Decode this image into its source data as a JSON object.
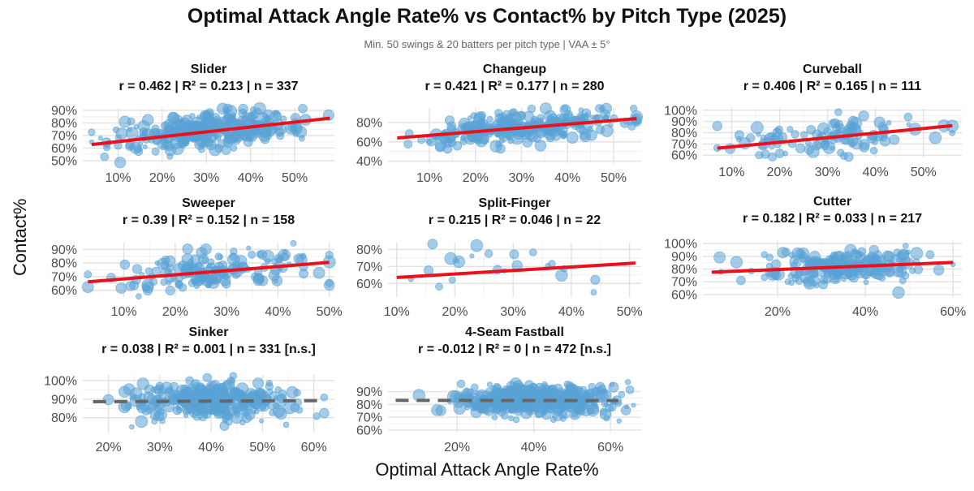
{
  "title": "Optimal Attack Angle Rate% vs Contact% by Pitch Type (2025)",
  "subtitle": "Min. 50 swings & 20 batters per pitch type | VAA ± 5°",
  "xlabel": "Optimal Attack Angle Rate%",
  "ylabel": "Contact%",
  "colors": {
    "points": "#5aa3d6",
    "fit_significant": "#e8111c",
    "fit_ns": "#666666",
    "grid": "#e2e2e2"
  },
  "chart_data": [
    {
      "type": "scatter",
      "panel": "Slider",
      "stats": "r = 0.462 | R² = 0.213 | n = 337",
      "xlim": [
        0.02,
        0.59
      ],
      "ylim": [
        0.48,
        0.92
      ],
      "xticks": [
        0.1,
        0.2,
        0.3,
        0.4,
        0.5
      ],
      "xtick_labels": [
        "10%",
        "20%",
        "30%",
        "40%",
        "50%"
      ],
      "yticks": [
        0.5,
        0.6,
        0.7,
        0.8,
        0.9
      ],
      "ytick_labels": [
        "50%",
        "60%",
        "70%",
        "80%",
        "90%"
      ],
      "n": 337,
      "xrange": [
        0.04,
        0.58
      ],
      "xcenter": 0.3,
      "xspread": 0.1,
      "yspread": 0.07,
      "fit": {
        "x": [
          0.04,
          0.58
        ],
        "y": [
          0.628,
          0.838
        ],
        "significant": true
      }
    },
    {
      "type": "scatter",
      "panel": "Changeup",
      "stats": "r = 0.421 | R² = 0.177 | n = 280",
      "xlim": [
        0.01,
        0.56
      ],
      "ylim": [
        0.38,
        0.95
      ],
      "xticks": [
        0.1,
        0.2,
        0.3,
        0.4,
        0.5
      ],
      "xtick_labels": [
        "10%",
        "20%",
        "30%",
        "40%",
        "50%"
      ],
      "yticks": [
        0.4,
        0.6,
        0.8
      ],
      "ytick_labels": [
        "40%",
        "60%",
        "80%"
      ],
      "n": 280,
      "xrange": [
        0.03,
        0.55
      ],
      "xcenter": 0.3,
      "xspread": 0.11,
      "yspread": 0.08,
      "fit": {
        "x": [
          0.03,
          0.55
        ],
        "y": [
          0.64,
          0.84
        ],
        "significant": true
      }
    },
    {
      "type": "scatter",
      "panel": "Curveball",
      "stats": "r = 0.406 | R² = 0.165 | n = 111",
      "xlim": [
        0.04,
        0.58
      ],
      "ylim": [
        0.58,
        1.02
      ],
      "xticks": [
        0.1,
        0.2,
        0.3,
        0.4,
        0.5
      ],
      "xtick_labels": [
        "10%",
        "20%",
        "30%",
        "40%",
        "50%"
      ],
      "yticks": [
        0.6,
        0.7,
        0.8,
        0.9,
        1.0
      ],
      "ytick_labels": [
        "60%",
        "70%",
        "80%",
        "90%",
        "100%"
      ],
      "n": 111,
      "xrange": [
        0.07,
        0.56
      ],
      "xcenter": 0.3,
      "xspread": 0.1,
      "yspread": 0.08,
      "fit": {
        "x": [
          0.07,
          0.56
        ],
        "y": [
          0.662,
          0.862
        ],
        "significant": true
      }
    },
    {
      "type": "scatter",
      "panel": "Sweeper",
      "stats": "r = 0.39 | R² = 0.152 | n = 158",
      "xlim": [
        0.02,
        0.51
      ],
      "ylim": [
        0.55,
        0.95
      ],
      "xticks": [
        0.1,
        0.2,
        0.3,
        0.4,
        0.5
      ],
      "xtick_labels": [
        "10%",
        "20%",
        "30%",
        "40%",
        "50%"
      ],
      "yticks": [
        0.6,
        0.7,
        0.8,
        0.9
      ],
      "ytick_labels": [
        "60%",
        "70%",
        "80%",
        "90%"
      ],
      "n": 158,
      "xrange": [
        0.03,
        0.5
      ],
      "xcenter": 0.28,
      "xspread": 0.1,
      "yspread": 0.07,
      "fit": {
        "x": [
          0.03,
          0.5
        ],
        "y": [
          0.662,
          0.805
        ],
        "significant": true
      }
    },
    {
      "type": "scatter",
      "panel": "Split-Finger",
      "stats": "r = 0.215 | R² = 0.046 | n = 22",
      "xlim": [
        0.085,
        0.52
      ],
      "ylim": [
        0.52,
        0.84
      ],
      "xticks": [
        0.1,
        0.2,
        0.3,
        0.4,
        0.5
      ],
      "xtick_labels": [
        "10%",
        "20%",
        "30%",
        "40%",
        "50%"
      ],
      "yticks": [
        0.6,
        0.7,
        0.8
      ],
      "ytick_labels": [
        "60%",
        "70%",
        "80%"
      ],
      "n": 22,
      "xrange": [
        0.1,
        0.51
      ],
      "xcenter": 0.3,
      "xspread": 0.1,
      "yspread": 0.08,
      "fit": {
        "x": [
          0.1,
          0.51
        ],
        "y": [
          0.635,
          0.72
        ],
        "significant": true
      }
    },
    {
      "type": "scatter",
      "panel": "Cutter",
      "stats": "r = 0.182 | R² = 0.033 | n = 217",
      "xlim": [
        0.03,
        0.62
      ],
      "ylim": [
        0.58,
        1.02
      ],
      "xticks": [
        0.2,
        0.4,
        0.6
      ],
      "xtick_labels": [
        "20%",
        "40%",
        "60%"
      ],
      "yticks": [
        0.6,
        0.7,
        0.8,
        0.9,
        1.0
      ],
      "ytick_labels": [
        "60%",
        "70%",
        "80%",
        "90%",
        "100%"
      ],
      "n": 217,
      "xrange": [
        0.05,
        0.6
      ],
      "xcenter": 0.35,
      "xspread": 0.1,
      "yspread": 0.06,
      "fit": {
        "x": [
          0.05,
          0.6
        ],
        "y": [
          0.775,
          0.852
        ],
        "significant": true
      }
    },
    {
      "type": "scatter",
      "panel": "Sinker",
      "stats": "r = 0.038 | R² = 0.001 | n = 331  [n.s.]",
      "xlim": [
        0.15,
        0.64
      ],
      "ylim": [
        0.72,
        1.03
      ],
      "xticks": [
        0.2,
        0.3,
        0.4,
        0.5,
        0.6
      ],
      "xtick_labels": [
        "20%",
        "30%",
        "40%",
        "50%",
        "60%"
      ],
      "yticks": [
        0.8,
        0.9,
        1.0
      ],
      "ytick_labels": [
        "80%",
        "90%",
        "100%"
      ],
      "n": 331,
      "xrange": [
        0.17,
        0.62
      ],
      "xcenter": 0.4,
      "xspread": 0.08,
      "yspread": 0.05,
      "fit": {
        "x": [
          0.17,
          0.62
        ],
        "y": [
          0.886,
          0.892
        ],
        "significant": false
      }
    },
    {
      "type": "scatter",
      "panel": "4-Seam Fastball",
      "stats": "r = -0.012 | R² = 0 | n = 472  [n.s.]",
      "xlim": [
        0.02,
        0.68
      ],
      "ylim": [
        0.58,
        0.98
      ],
      "xticks": [
        0.2,
        0.4,
        0.6
      ],
      "xtick_labels": [
        "20%",
        "40%",
        "60%"
      ],
      "yticks": [
        0.6,
        0.7,
        0.8,
        0.9
      ],
      "ytick_labels": [
        "60%",
        "70%",
        "80%",
        "90%"
      ],
      "n": 472,
      "xrange": [
        0.04,
        0.66
      ],
      "xcenter": 0.4,
      "xspread": 0.1,
      "yspread": 0.06,
      "fit": {
        "x": [
          0.04,
          0.62
        ],
        "y": [
          0.832,
          0.83
        ],
        "significant": false
      }
    }
  ]
}
